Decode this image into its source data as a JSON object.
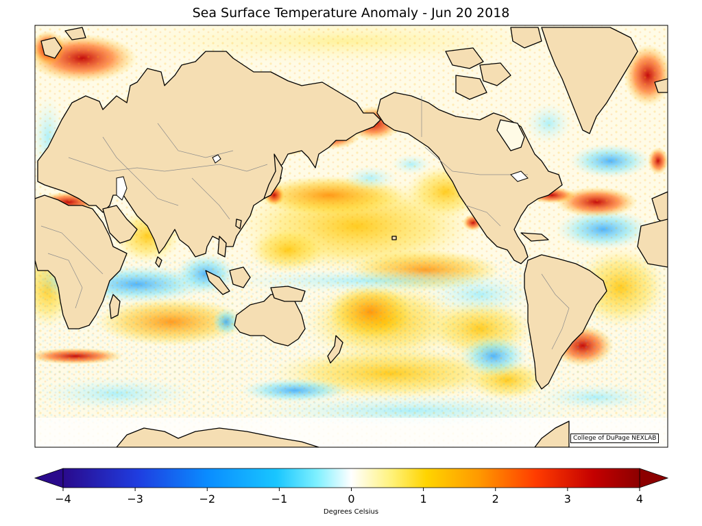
{
  "title": "Sea Surface Temperature Anomaly - Jun 20 2018",
  "credit": "College of DuPage NEXLAB",
  "colorbar": {
    "label": "Degrees Celsius",
    "min": -4,
    "max": 4,
    "ticks": [
      -4,
      -3,
      -2,
      -1,
      0,
      1,
      2,
      3,
      4
    ],
    "tick_labels": [
      "−4",
      "−3",
      "−2",
      "−1",
      "0",
      "1",
      "2",
      "3",
      "4"
    ],
    "extend": "both",
    "colormap": [
      "#2a0a8c",
      "#1f3de0",
      "#0a8cff",
      "#19c6ff",
      "#7ef0ff",
      "#ffffff",
      "#fff27a",
      "#ffd400",
      "#ff9a00",
      "#ff3c00",
      "#c40000",
      "#8c0000"
    ]
  },
  "colors": {
    "land": "#f5deb3",
    "coastline": "#000000",
    "borders": "#8c8c8c",
    "missing": "#ffffff"
  }
}
